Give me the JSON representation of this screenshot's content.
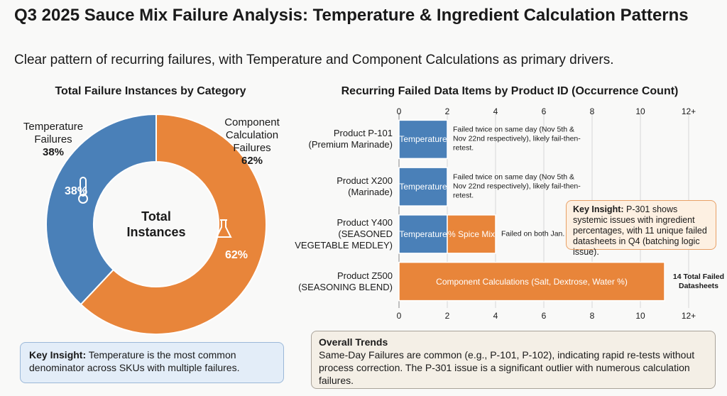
{
  "title": "Q3 2025 Sauce Mix Failure Analysis: Temperature & Ingredient Calculation Patterns",
  "subtitle": "Clear pattern of recurring failures, with Temperature and Component Calculations as primary drivers.",
  "chart_data": [
    {
      "type": "pie",
      "title": "Total Failure Instances by Category",
      "center_label": "Total Instances",
      "categories": [
        "Temperature Failures",
        "Component Calculation Failures"
      ],
      "values": [
        38,
        62
      ],
      "value_labels": [
        "38%",
        "62%"
      ],
      "colors": [
        "#4a80b8",
        "#e8853a"
      ]
    },
    {
      "type": "bar",
      "orientation": "horizontal",
      "title": "Recurring Failed Data Items by Product ID (Occurrence Count)",
      "categories": [
        [
          "Product P-101",
          "(Premium Marinade)"
        ],
        [
          "Product X200",
          "(Marinade)"
        ],
        [
          "Product Y400",
          "(SEASONED",
          "VEGETABLE MEDLEY)"
        ],
        [
          "Product Z500",
          "(SEASONING BLEND)"
        ]
      ],
      "series": [
        {
          "name": "Temperature",
          "color": "#4a80b8",
          "values": [
            2,
            2,
            2,
            null
          ]
        },
        {
          "name": "% Spice Mix",
          "color": "#e8853a",
          "values": [
            null,
            null,
            2,
            null
          ]
        },
        {
          "name": "Component Calculations (Salt, Dextrose, Water %)",
          "color": "#e8853a",
          "values": [
            null,
            null,
            null,
            11
          ]
        }
      ],
      "annotations": [
        "Failed twice on same day (Nov 5th & Nov 22nd respectively), likely fail-then-retest.",
        "Failed twice on same day (Nov 5th & Nov 22nd respectively), likely fail-then-retest.",
        "Failed on both Jan.",
        "14 Total Failed Datasheets"
      ],
      "xlim": [
        0,
        12
      ],
      "xticks": [
        0,
        2,
        4,
        6,
        8,
        10,
        {
          "value": 12,
          "label": "12+"
        }
      ],
      "grid": true,
      "callout": {
        "label": "Key Insight:",
        "text": "P-301 shows systemic issues with ingredient percentages, with 11 unique failed datasheets in Q4 (batching logic issue)."
      }
    }
  ],
  "key_insight": {
    "label": "Key Insight:",
    "text": "Temperature is the most common denominator across SKUs with multiple failures."
  },
  "overall_trends": {
    "title": "Overall Trends",
    "text": "Same-Day Failures are common (e.g., P-101, P-102), indicating rapid re-tests without process correction. The P-301 issue is a significant outlier with numerous calculation failures."
  }
}
